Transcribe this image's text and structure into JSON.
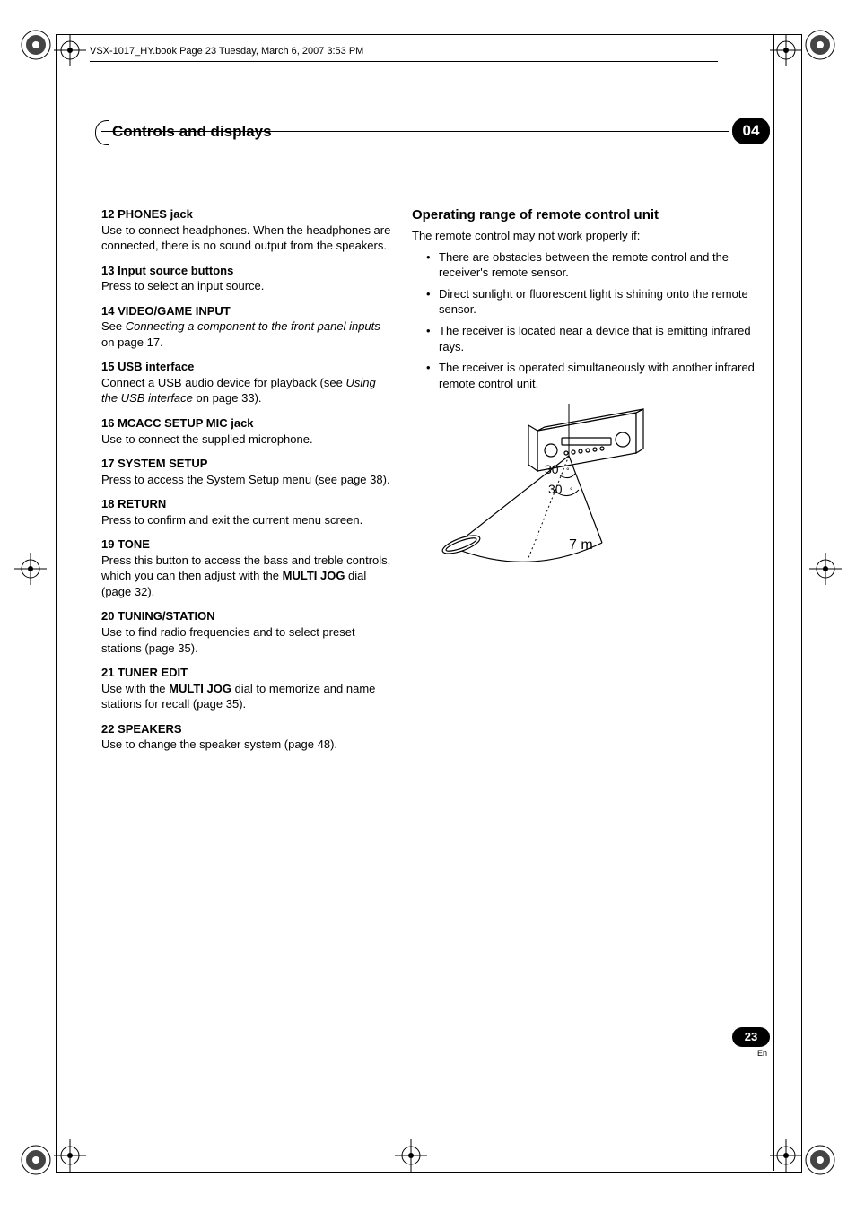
{
  "header": {
    "book_info": "VSX-1017_HY.book  Page 23  Tuesday, March 6, 2007  3:53 PM"
  },
  "section": {
    "title": "Controls and displays",
    "chapter": "04"
  },
  "left_column": [
    {
      "num": "12",
      "title": "PHONES jack",
      "body_parts": [
        {
          "t": "plain",
          "v": "Use to connect headphones. When the headphones are connected, there is no sound output from the speakers."
        }
      ]
    },
    {
      "num": "13",
      "title": "Input source buttons",
      "body_parts": [
        {
          "t": "plain",
          "v": "Press to select an input source."
        }
      ]
    },
    {
      "num": "14",
      "title": "VIDEO/GAME INPUT",
      "body_parts": [
        {
          "t": "plain",
          "v": "See "
        },
        {
          "t": "italic",
          "v": "Connecting a component to the front panel inputs"
        },
        {
          "t": "plain",
          "v": " on page 17."
        }
      ]
    },
    {
      "num": "15",
      "title": "USB interface",
      "body_parts": [
        {
          "t": "plain",
          "v": "Connect a USB audio device for playback (see "
        },
        {
          "t": "italic",
          "v": "Using the USB interface"
        },
        {
          "t": "plain",
          "v": " on page 33)."
        }
      ]
    },
    {
      "num": "16",
      "title": "MCACC SETUP MIC jack",
      "body_parts": [
        {
          "t": "plain",
          "v": "Use to connect the supplied microphone."
        }
      ]
    },
    {
      "num": "17",
      "title": "SYSTEM SETUP",
      "body_parts": [
        {
          "t": "plain",
          "v": "Press to access the System Setup menu (see page 38)."
        }
      ]
    },
    {
      "num": "18",
      "title": "RETURN",
      "body_parts": [
        {
          "t": "plain",
          "v": "Press to confirm and exit the current menu screen."
        }
      ]
    },
    {
      "num": "19",
      "title": "TONE",
      "body_parts": [
        {
          "t": "plain",
          "v": "Press this button to access the bass and treble controls, which you can then adjust with the "
        },
        {
          "t": "bold",
          "v": "MULTI JOG"
        },
        {
          "t": "plain",
          "v": " dial (page 32)."
        }
      ]
    },
    {
      "num": "20",
      "title": "TUNING/STATION",
      "body_parts": [
        {
          "t": "plain",
          "v": "Use to find radio frequencies and to select preset stations (page 35)."
        }
      ]
    },
    {
      "num": "21",
      "title": "TUNER EDIT",
      "body_parts": [
        {
          "t": "plain",
          "v": "Use with the "
        },
        {
          "t": "bold",
          "v": "MULTI JOG"
        },
        {
          "t": "plain",
          "v": " dial to memorize and name stations for recall (page 35)."
        }
      ]
    },
    {
      "num": "22",
      "title": "SPEAKERS",
      "body_parts": [
        {
          "t": "plain",
          "v": "Use to change the speaker system (page 48)."
        }
      ]
    }
  ],
  "right_column": {
    "heading": "Operating range of remote control unit",
    "intro": "The remote control may not work properly if:",
    "bullets": [
      "There are obstacles between the remote control and the receiver's remote sensor.",
      "Direct sunlight or fluorescent light is shining onto the remote sensor.",
      "The receiver is located near a device that is emitting infrared rays.",
      "The receiver is operated simultaneously with another infrared remote control unit."
    ],
    "diagram": {
      "angle_top_label": "30",
      "angle_bottom_label": "30",
      "distance_label": "7 m"
    }
  },
  "footer": {
    "page_number": "23",
    "lang": "En"
  },
  "colors": {
    "text": "#000000",
    "background": "#ffffff"
  }
}
